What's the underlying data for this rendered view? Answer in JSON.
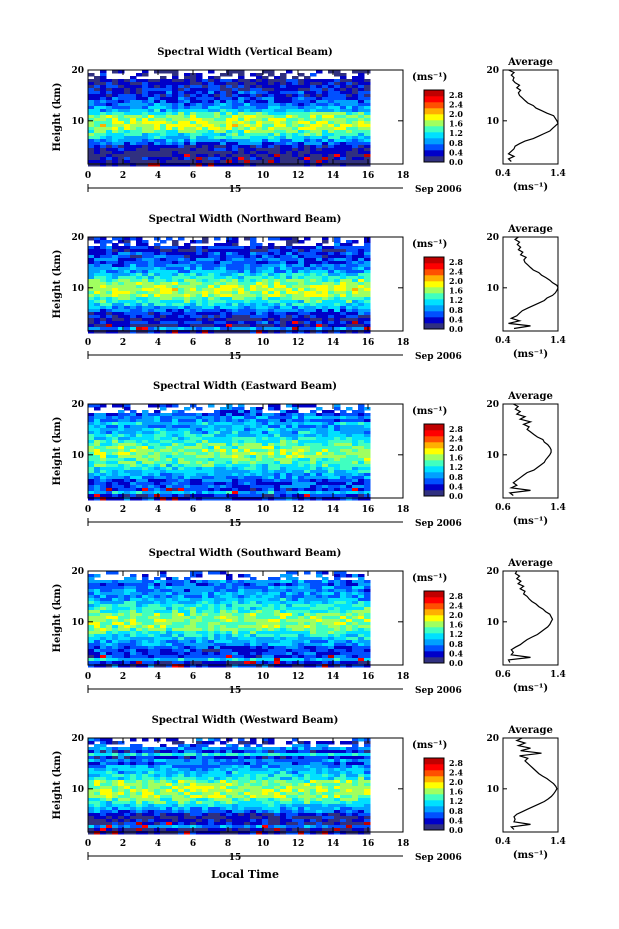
{
  "figure": {
    "xlabel": "Local Time",
    "date_label": "Sep 2006",
    "day_label": "15",
    "colorbar_unit": "(ms⁻¹)",
    "colorbar_ticks": [
      "0.0",
      "0.4",
      "0.8",
      "1.2",
      "1.6",
      "2.0",
      "2.4",
      "2.8"
    ],
    "colorbar_range": [
      0.0,
      3.0
    ],
    "colormap": [
      "#303080",
      "#0000c8",
      "#0050ff",
      "#00a0ff",
      "#00e0ff",
      "#40ffc0",
      "#a0ff60",
      "#ffff00",
      "#ffb000",
      "#ff5000",
      "#ff0000",
      "#c00000"
    ],
    "average_title": "Average",
    "average_unit_label": "(ms⁻¹)"
  },
  "chart_data": [
    {
      "type": "heatmap",
      "title": "Spectral Width (Vertical Beam)",
      "ylabel": "Height (km)",
      "x_ticks": [
        "0",
        "2",
        "4",
        "6",
        "8",
        "10",
        "12",
        "14",
        "16",
        "18"
      ],
      "xlim": [
        0,
        18
      ],
      "data_x_end": 16,
      "y_ticks": [
        "10",
        "20"
      ],
      "ylim": [
        1.5,
        20
      ],
      "profile": {
        "title": "Average",
        "x_ticks": [
          "0.4",
          "1.4"
        ],
        "xlim": [
          0.4,
          1.4
        ],
        "y_ticks": [
          "10",
          "20"
        ],
        "ylim": [
          1.5,
          20
        ],
        "height_km": [
          2,
          2.5,
          3,
          3.5,
          4,
          4.5,
          5,
          5.5,
          6,
          6.5,
          7,
          7.5,
          8,
          8.5,
          9,
          9.5,
          10,
          10.5,
          11,
          11.5,
          12,
          12.5,
          13,
          13.5,
          14,
          14.5,
          15,
          15.5,
          16,
          16.5,
          17,
          17.5,
          18,
          18.5,
          19,
          19.5,
          20
        ],
        "width_ms": [
          0.55,
          0.5,
          0.6,
          0.5,
          0.55,
          0.6,
          0.62,
          0.7,
          0.8,
          0.95,
          1.05,
          1.15,
          1.25,
          1.3,
          1.35,
          1.4,
          1.38,
          1.35,
          1.32,
          1.2,
          1.1,
          1.0,
          0.95,
          0.85,
          0.8,
          0.75,
          0.7,
          0.68,
          0.72,
          0.65,
          0.7,
          0.62,
          0.58,
          0.6,
          0.55,
          0.6,
          0.5
        ]
      }
    },
    {
      "type": "heatmap",
      "title": "Spectral Width (Northward Beam)",
      "ylabel": "Height (km)",
      "x_ticks": [
        "0",
        "2",
        "4",
        "6",
        "8",
        "10",
        "12",
        "14",
        "16",
        "18"
      ],
      "xlim": [
        0,
        18
      ],
      "data_x_end": 16,
      "y_ticks": [
        "10",
        "20"
      ],
      "ylim": [
        1.5,
        20
      ],
      "profile": {
        "title": "Average",
        "x_ticks": [
          "0.4",
          "1.4"
        ],
        "xlim": [
          0.4,
          1.4
        ],
        "y_ticks": [
          "10",
          "20"
        ],
        "ylim": [
          1.5,
          20
        ],
        "height_km": [
          2,
          2.5,
          3,
          3.5,
          4,
          4.5,
          5,
          5.5,
          6,
          6.5,
          7,
          7.5,
          8,
          8.5,
          9,
          9.5,
          10,
          10.5,
          11,
          11.5,
          12,
          12.5,
          13,
          13.5,
          14,
          14.5,
          15,
          15.5,
          16,
          16.5,
          17,
          17.5,
          18,
          18.5,
          19,
          19.5,
          20
        ],
        "width_ms": [
          0.6,
          0.9,
          0.5,
          0.7,
          0.55,
          0.65,
          0.7,
          0.75,
          0.85,
          0.95,
          1.05,
          1.15,
          1.2,
          1.3,
          1.35,
          1.38,
          1.4,
          1.38,
          1.3,
          1.25,
          1.18,
          1.1,
          1.05,
          0.95,
          0.9,
          0.85,
          0.8,
          0.78,
          0.82,
          0.72,
          0.76,
          0.68,
          0.72,
          0.66,
          0.7,
          0.62,
          0.68
        ]
      }
    },
    {
      "type": "heatmap",
      "title": "Spectral Width (Eastward Beam)",
      "ylabel": "Height (km)",
      "x_ticks": [
        "0",
        "2",
        "4",
        "6",
        "8",
        "10",
        "12",
        "14",
        "16",
        "18"
      ],
      "xlim": [
        0,
        18
      ],
      "data_x_end": 16,
      "y_ticks": [
        "10",
        "20"
      ],
      "ylim": [
        1.5,
        20
      ],
      "profile": {
        "title": "Average",
        "x_ticks": [
          "0.6",
          "1.4"
        ],
        "xlim": [
          0.6,
          1.4
        ],
        "y_ticks": [
          "10",
          "20"
        ],
        "ylim": [
          1.5,
          20
        ],
        "height_km": [
          2,
          2.5,
          3,
          3.5,
          4,
          4.5,
          5,
          5.5,
          6,
          6.5,
          7,
          7.5,
          8,
          8.5,
          9,
          9.5,
          10,
          10.5,
          11,
          11.5,
          12,
          12.5,
          13,
          13.5,
          14,
          14.5,
          15,
          15.5,
          16,
          16.5,
          17,
          17.5,
          18,
          18.5,
          19,
          19.5,
          20
        ],
        "width_ms": [
          0.75,
          0.7,
          1.0,
          0.72,
          0.8,
          0.75,
          0.8,
          0.85,
          0.9,
          0.95,
          1.05,
          1.1,
          1.15,
          1.2,
          1.22,
          1.25,
          1.28,
          1.3,
          1.3,
          1.28,
          1.25,
          1.2,
          1.18,
          1.1,
          1.05,
          1.0,
          0.95,
          0.98,
          0.9,
          1.0,
          0.85,
          0.92,
          0.8,
          0.85,
          0.78,
          0.82,
          0.75
        ]
      }
    },
    {
      "type": "heatmap",
      "title": "Spectral Width (Southward Beam)",
      "ylabel": "Height (km)",
      "x_ticks": [
        "0",
        "2",
        "4",
        "6",
        "8",
        "10",
        "12",
        "14",
        "16",
        "18"
      ],
      "xlim": [
        0,
        18
      ],
      "data_x_end": 16,
      "y_ticks": [
        "10",
        "20"
      ],
      "ylim": [
        1.5,
        20
      ],
      "profile": {
        "title": "Average",
        "x_ticks": [
          "0.6",
          "1.4"
        ],
        "xlim": [
          0.6,
          1.4
        ],
        "y_ticks": [
          "10",
          "20"
        ],
        "ylim": [
          1.5,
          20
        ],
        "height_km": [
          2,
          2.5,
          3,
          3.5,
          4,
          4.5,
          5,
          5.5,
          6,
          6.5,
          7,
          7.5,
          8,
          8.5,
          9,
          9.5,
          10,
          10.5,
          11,
          11.5,
          12,
          12.5,
          13,
          13.5,
          14,
          14.5,
          15,
          15.5,
          16,
          16.5,
          17,
          17.5,
          18,
          18.5,
          19,
          19.5,
          20
        ],
        "width_ms": [
          0.7,
          0.68,
          1.0,
          0.72,
          0.75,
          0.72,
          0.78,
          0.85,
          0.9,
          0.95,
          1.02,
          1.1,
          1.15,
          1.2,
          1.25,
          1.28,
          1.3,
          1.32,
          1.3,
          1.28,
          1.22,
          1.18,
          1.12,
          1.08,
          1.02,
          0.98,
          0.95,
          0.9,
          0.92,
          0.85,
          0.9,
          0.82,
          0.86,
          0.8,
          0.84,
          0.78,
          0.8
        ]
      }
    },
    {
      "type": "heatmap",
      "title": "Spectral Width (Westward Beam)",
      "ylabel": "Height (km)",
      "x_ticks": [
        "0",
        "2",
        "4",
        "6",
        "8",
        "10",
        "12",
        "14",
        "16",
        "18"
      ],
      "xlim": [
        0,
        18
      ],
      "data_x_end": 16,
      "y_ticks": [
        "10",
        "20"
      ],
      "ylim": [
        1.5,
        20
      ],
      "profile": {
        "title": "Average",
        "x_ticks": [
          "0.4",
          "1.4"
        ],
        "xlim": [
          0.4,
          1.4
        ],
        "y_ticks": [
          "10",
          "20"
        ],
        "ylim": [
          1.5,
          20
        ],
        "height_km": [
          2,
          2.5,
          3,
          3.5,
          4,
          4.5,
          5,
          5.5,
          6,
          6.5,
          7,
          7.5,
          8,
          8.5,
          9,
          9.5,
          10,
          10.5,
          11,
          11.5,
          12,
          12.5,
          13,
          13.5,
          14,
          14.5,
          15,
          15.5,
          16,
          16.5,
          17,
          17.5,
          18,
          18.5,
          19,
          19.5,
          20
        ],
        "width_ms": [
          0.6,
          0.55,
          0.9,
          0.6,
          0.62,
          0.6,
          0.65,
          0.75,
          0.85,
          0.95,
          1.05,
          1.15,
          1.22,
          1.28,
          1.32,
          1.35,
          1.38,
          1.36,
          1.32,
          1.26,
          1.2,
          1.12,
          1.05,
          1.0,
          0.95,
          0.9,
          0.85,
          0.8,
          0.85,
          0.7,
          1.1,
          0.72,
          0.9,
          0.68,
          0.8,
          0.65,
          0.75
        ]
      }
    }
  ]
}
